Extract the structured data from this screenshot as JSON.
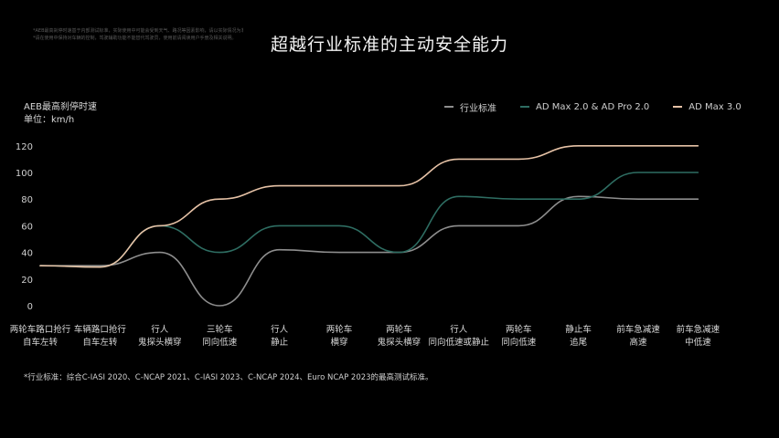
{
  "disclaimer": {
    "lines": [
      "*AEB最高刹停时速基于内部测试标准，实际使用中可能会受到天气、路况等因素影响，请以实际情况为准。",
      "*请在使用中保持对车辆的控制，驾驶辅助功能不能替代驾驶员，使用前请阅读用户手册及相关说明。"
    ]
  },
  "title": "超越行业标准的主动安全能力",
  "chart_data": {
    "type": "line",
    "ylabel": "AEB最高刹停时速",
    "yunit": "单位：km/h",
    "ylim": [
      0,
      120
    ],
    "yticks": [
      0,
      20,
      40,
      60,
      80,
      100,
      120
    ],
    "grid": false,
    "legend_position": "top-right",
    "categories": [
      [
        "两轮车路口抢行",
        "自车左转"
      ],
      [
        "车辆路口抢行",
        "自车左转"
      ],
      [
        "行人",
        "鬼探头横穿"
      ],
      [
        "三轮车",
        "同向低速"
      ],
      [
        "行人",
        "静止"
      ],
      [
        "两轮车",
        "横穿"
      ],
      [
        "两轮车",
        "鬼探头横穿"
      ],
      [
        "行人",
        "同向低速或静止"
      ],
      [
        "两轮车",
        "同向低速"
      ],
      [
        "静止车",
        "追尾"
      ],
      [
        "前车急减速",
        "高速"
      ],
      [
        "前车急减速",
        "中低速"
      ]
    ],
    "series": [
      {
        "name": "行业标准",
        "color": "#8e8e8e",
        "values": [
          30,
          30,
          40,
          0,
          42,
          40,
          40,
          60,
          60,
          82,
          80,
          80
        ]
      },
      {
        "name": "AD Max 2.0 & AD Pro 2.0",
        "color": "#2e6d62",
        "values": [
          30,
          29,
          60,
          40,
          60,
          60,
          40,
          82,
          80,
          80,
          100,
          100
        ]
      },
      {
        "name": "AD Max 3.0",
        "color": "#e6c2a6",
        "values": [
          30,
          29,
          60,
          80,
          90,
          90,
          90,
          110,
          110,
          120,
          120,
          120
        ]
      }
    ]
  },
  "footnote": "*行业标准：综合C-IASI 2020、C-NCAP 2021、C-IASI 2023、C-NCAP 2024、Euro NCAP 2023的最高测试标准。"
}
